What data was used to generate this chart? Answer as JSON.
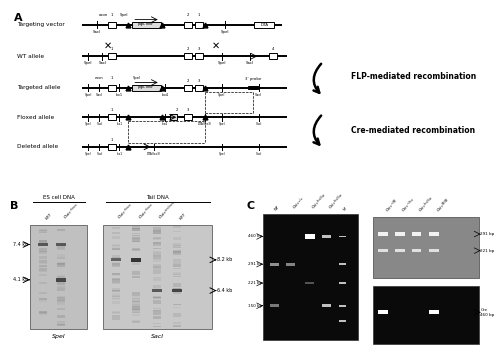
{
  "bg_color": "#ffffff",
  "panel_A": {
    "alleles": [
      "Targeting vector",
      "WT allele",
      "Targeted allele",
      "Floxed allele",
      "Deleted allele"
    ],
    "flp_label": "FLP-mediated recombination",
    "cre_label": "Cre-mediated recombination"
  },
  "panel_B": {
    "es_label": "ES cell DNA",
    "tail_label": "Tail DNA",
    "left_lanes": [
      "WT",
      "Oxtr^{+/neo}"
    ],
    "right_lanes": [
      "Oxtr^{+/neo}",
      "Oxtr^{+/neo}",
      "Oxtr^{neo/neo}",
      "WT"
    ],
    "left_bands": [
      [
        "7.4 kb",
        0.78
      ],
      [
        "4.1 kb",
        0.48
      ]
    ],
    "right_bands": [
      [
        "8.2 kb",
        0.62
      ],
      [
        "6.4 kb",
        0.36
      ]
    ],
    "enzyme_left": "SpeI",
    "enzyme_right": "SacI"
  },
  "panel_C": {
    "left_lanes": [
      "WT",
      "Oxtr^{-/-}",
      "Oxtr^{flox/flox}",
      "Oxtr^{flox/flox}",
      "M"
    ],
    "left_bands": [
      [
        "460 bp",
        0.82
      ],
      [
        "291 bp",
        0.6
      ],
      [
        "221 bp",
        0.45
      ],
      [
        "150 bp",
        0.27
      ]
    ],
    "rt_lanes": [
      "Oxtr^{+/FB}",
      "Oxtr^{+/flox}",
      "Oxtr^{flox/flox}",
      "Oxtr^{FB/FB}"
    ],
    "rt_bands": [
      [
        "291 bp",
        0.72
      ],
      [
        "221 bp",
        0.45
      ]
    ],
    "rb_lanes": [
      "Oxtr^{+/FB}",
      "Oxtr^{+/flox}",
      "Oxtr^{flox/flox}",
      "Oxtr^{FB/FB}"
    ],
    "rb_bands": [
      [
        "Cre\n460 bp",
        0.55
      ]
    ]
  }
}
